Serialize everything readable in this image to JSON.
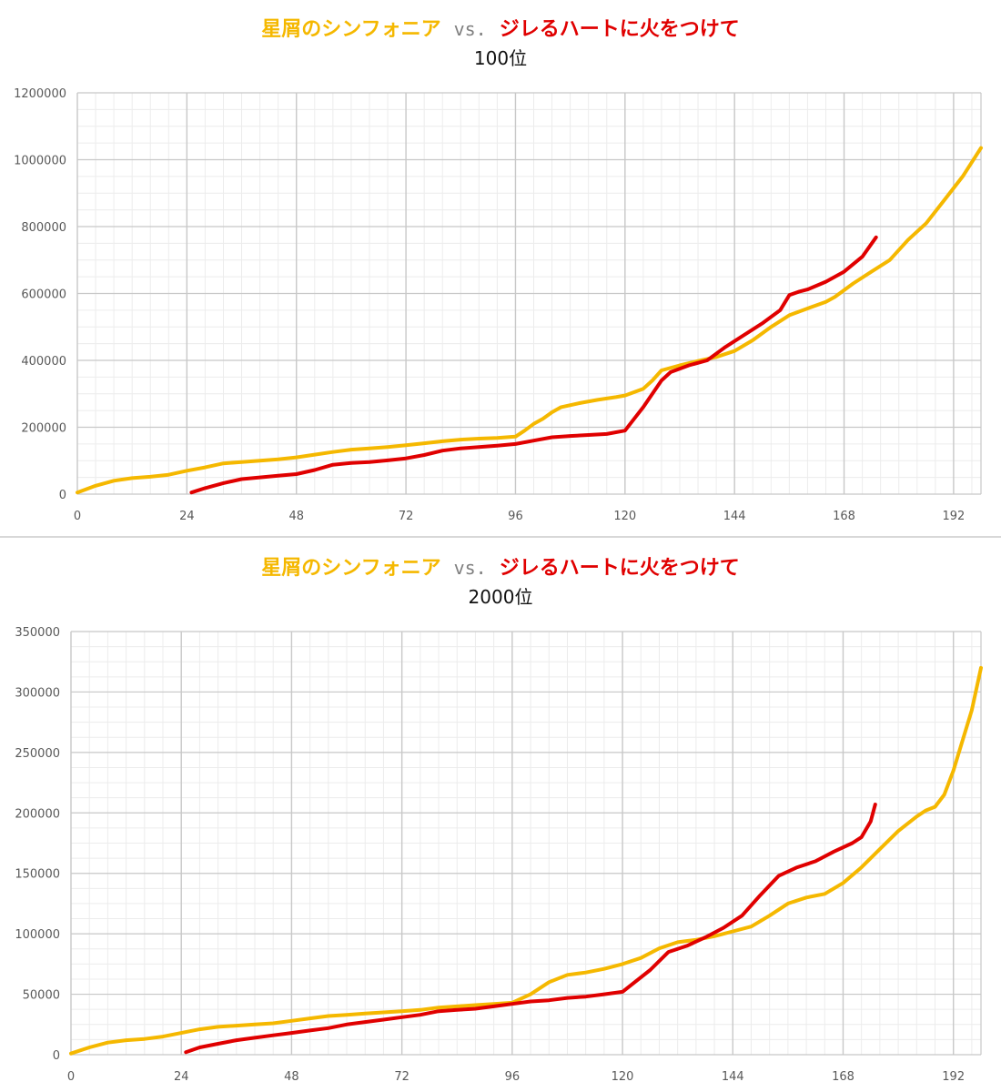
{
  "colors": {
    "series_a": "#f5b800",
    "series_b": "#e00000",
    "vs": "#7f7f7f",
    "grid_major": "#c8c8c8",
    "grid_minor": "#ececec"
  },
  "chart_data": [
    {
      "type": "line",
      "title_a": "星屑のシンフォニア",
      "title_vs": "vs.",
      "title_b": "ジレるハートに火をつけて",
      "subtitle": "100位",
      "xlabel": "",
      "ylabel": "",
      "xlim": [
        0,
        198
      ],
      "ylim": [
        0,
        1200000
      ],
      "xticks": [
        0,
        24,
        48,
        72,
        96,
        120,
        144,
        168,
        192
      ],
      "yticks": [
        0,
        200000,
        400000,
        600000,
        800000,
        1000000,
        1200000
      ],
      "grid": true,
      "series": [
        {
          "name": "星屑のシンフォニア",
          "x": [
            0,
            4,
            8,
            12,
            16,
            20,
            24,
            28,
            32,
            36,
            40,
            44,
            48,
            52,
            56,
            60,
            64,
            68,
            72,
            76,
            80,
            84,
            88,
            92,
            96,
            98,
            100,
            102,
            104,
            106,
            110,
            114,
            118,
            120,
            124,
            126,
            128,
            132,
            136,
            140,
            144,
            148,
            152,
            156,
            160,
            164,
            166,
            170,
            174,
            178,
            182,
            186,
            190,
            194,
            198
          ],
          "y": [
            5000,
            25000,
            40000,
            48000,
            52000,
            58000,
            70000,
            80000,
            92000,
            96000,
            100000,
            104000,
            110000,
            118000,
            126000,
            133000,
            137000,
            141000,
            146000,
            152000,
            158000,
            163000,
            166000,
            168000,
            172000,
            190000,
            210000,
            225000,
            245000,
            260000,
            272000,
            282000,
            290000,
            295000,
            315000,
            340000,
            370000,
            385000,
            398000,
            410000,
            428000,
            460000,
            500000,
            535000,
            555000,
            575000,
            590000,
            630000,
            665000,
            700000,
            760000,
            810000,
            880000,
            950000,
            1035000
          ]
        },
        {
          "name": "ジレるハートに火をつけて",
          "x": [
            25,
            28,
            32,
            36,
            40,
            44,
            48,
            52,
            56,
            60,
            64,
            68,
            72,
            76,
            80,
            84,
            88,
            92,
            96,
            100,
            104,
            108,
            112,
            116,
            120,
            122,
            124,
            126,
            128,
            130,
            134,
            138,
            142,
            146,
            150,
            154,
            156,
            158,
            160,
            164,
            168,
            172,
            175
          ],
          "y": [
            5000,
            18000,
            33000,
            45000,
            50000,
            55000,
            60000,
            72000,
            88000,
            93000,
            96000,
            101000,
            107000,
            117000,
            130000,
            137000,
            141000,
            145000,
            150000,
            160000,
            170000,
            174000,
            177000,
            180000,
            190000,
            225000,
            260000,
            300000,
            340000,
            365000,
            385000,
            400000,
            440000,
            475000,
            510000,
            550000,
            595000,
            605000,
            612000,
            635000,
            665000,
            710000,
            768000
          ]
        }
      ]
    },
    {
      "type": "line",
      "title_a": "星屑のシンフォニア",
      "title_vs": "vs.",
      "title_b": "ジレるハートに火をつけて",
      "subtitle": "2000位",
      "xlabel": "",
      "ylabel": "",
      "xlim": [
        0,
        198
      ],
      "ylim": [
        0,
        350000
      ],
      "xticks": [
        0,
        24,
        48,
        72,
        96,
        120,
        144,
        168,
        192
      ],
      "yticks": [
        0,
        50000,
        100000,
        150000,
        200000,
        250000,
        300000,
        350000
      ],
      "grid": true,
      "series": [
        {
          "name": "星屑のシンフォニア",
          "x": [
            0,
            4,
            8,
            12,
            16,
            20,
            24,
            28,
            32,
            36,
            40,
            44,
            48,
            52,
            56,
            60,
            64,
            68,
            72,
            76,
            80,
            84,
            88,
            92,
            96,
            100,
            104,
            108,
            112,
            116,
            120,
            124,
            128,
            132,
            136,
            140,
            144,
            148,
            152,
            156,
            160,
            164,
            168,
            172,
            176,
            180,
            184,
            186,
            188,
            190,
            192,
            194,
            196,
            198
          ],
          "y": [
            1000,
            6000,
            10000,
            12000,
            13000,
            15000,
            18000,
            21000,
            23000,
            24000,
            25000,
            26000,
            28000,
            30000,
            32000,
            33000,
            34000,
            35000,
            36000,
            37000,
            39000,
            40000,
            41000,
            42000,
            43000,
            50000,
            60000,
            66000,
            68000,
            71000,
            75000,
            80000,
            88000,
            93000,
            95000,
            98000,
            102000,
            106000,
            115000,
            125000,
            130000,
            133000,
            142000,
            155000,
            170000,
            185000,
            197000,
            202000,
            205000,
            215000,
            235000,
            260000,
            285000,
            320000
          ]
        },
        {
          "name": "ジレるハートに火をつけて",
          "x": [
            25,
            28,
            32,
            36,
            40,
            44,
            48,
            52,
            56,
            60,
            64,
            68,
            72,
            76,
            80,
            84,
            88,
            92,
            96,
            100,
            104,
            108,
            112,
            116,
            120,
            122,
            126,
            130,
            134,
            138,
            142,
            146,
            150,
            154,
            158,
            162,
            166,
            170,
            172,
            174,
            175
          ],
          "y": [
            2000,
            6000,
            9000,
            12000,
            14000,
            16000,
            18000,
            20000,
            22000,
            25000,
            27000,
            29000,
            31000,
            33000,
            36000,
            37000,
            38000,
            40000,
            42000,
            44000,
            45000,
            47000,
            48000,
            50000,
            52000,
            58000,
            70000,
            85000,
            90000,
            97000,
            105000,
            115000,
            132000,
            148000,
            155000,
            160000,
            168000,
            175000,
            180000,
            193000,
            207000
          ]
        }
      ]
    }
  ]
}
